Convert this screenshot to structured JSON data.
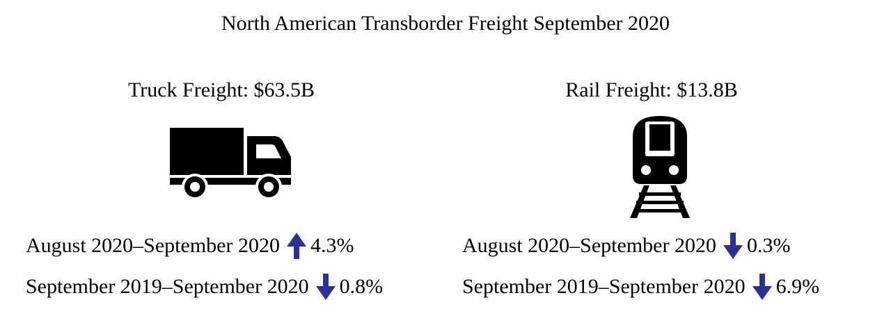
{
  "title": "North American Transborder Freight September 2020",
  "colors": {
    "arrow": "#2e3192",
    "text": "#000000",
    "icon": "#000000"
  },
  "truck": {
    "heading": "Truck Freight: $63.5B",
    "icon": "truck-icon",
    "stats": [
      {
        "period": "August 2020–September 2020",
        "direction": "up",
        "icon": "arrow-up-icon",
        "change": "4.3%"
      },
      {
        "period": "September 2019–September 2020",
        "direction": "down",
        "icon": "arrow-down-icon",
        "change": "0.8%"
      }
    ]
  },
  "rail": {
    "heading": "Rail Freight: $13.8B",
    "icon": "train-icon",
    "stats": [
      {
        "period": "August 2020–September 2020",
        "direction": "down",
        "icon": "arrow-down-icon",
        "change": "0.3%"
      },
      {
        "period": "September 2019–September 2020",
        "direction": "down",
        "icon": "arrow-down-icon",
        "change": "6.9%"
      }
    ]
  }
}
